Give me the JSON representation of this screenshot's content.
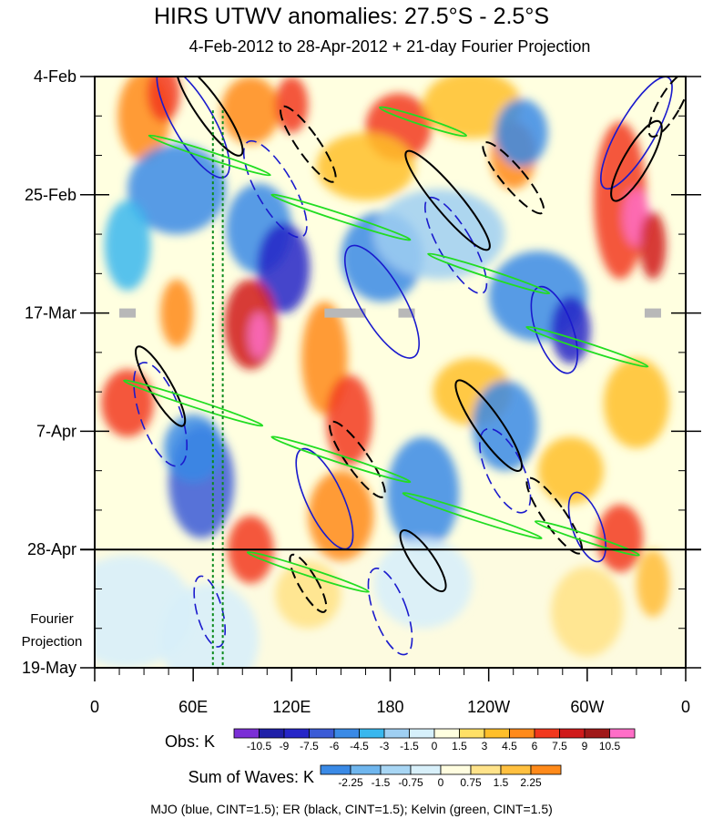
{
  "chart_data": {
    "type": "heatmap",
    "title": "HIRS UTWV anomalies: 27.5°S - 2.5°S",
    "subtitle": "4-Feb-2012 to 28-Apr-2012 + 21-day Fourier Projection",
    "x_tick_labels": [
      "0",
      "60E",
      "120E",
      "180",
      "120W",
      "60W",
      "0"
    ],
    "x_tick_lon": [
      0,
      60,
      120,
      180,
      240,
      300,
      360
    ],
    "xlim": [
      0,
      360
    ],
    "y_tick_labels": [
      "4-Feb",
      "25-Feb",
      "17-Mar",
      "7-Apr",
      "28-Apr",
      "19-May"
    ],
    "y_tick_day": [
      0,
      21,
      42,
      63,
      84,
      105
    ],
    "ylim_days": [
      0,
      105
    ],
    "obs_end_day": 84,
    "projection_label_lines": [
      "Fourier",
      "Projection"
    ],
    "obs_colorbar": {
      "label": "Obs: K",
      "levels": [
        "-10.5",
        "-9",
        "-7.5",
        "-6",
        "-4.5",
        "-3",
        "-1.5",
        "0",
        "1.5",
        "3",
        "4.5",
        "6",
        "7.5",
        "9",
        "10.5"
      ],
      "colors": [
        "#7b2fd6",
        "#1f1fa8",
        "#2626c8",
        "#3b5bd6",
        "#3a8ae6",
        "#38b7ee",
        "#9fcff2",
        "#d6f0fb",
        "#ffffe0",
        "#ffe066",
        "#ffbf2a",
        "#ff8a1a",
        "#f2381d",
        "#d01a1a",
        "#a01818",
        "#ff6ec7"
      ]
    },
    "waves_colorbar": {
      "label": "Sum of Waves: K",
      "levels": [
        "-2.25",
        "-1.5",
        "-0.75",
        "0",
        "0.75",
        "1.5",
        "2.25"
      ],
      "colors": [
        "#3a8ae6",
        "#6fb6ee",
        "#a8d6f4",
        "#d8f0fa",
        "#fffde0",
        "#ffe38a",
        "#ffc040",
        "#ff8a1a"
      ]
    },
    "missing_data_spans_lon_at_day_42": [
      [
        15,
        25
      ],
      [
        140,
        165
      ],
      [
        185,
        195
      ],
      [
        335,
        345
      ]
    ],
    "green_dotted_lines_lon": [
      72,
      78
    ],
    "contours": [
      {
        "name": "MJO",
        "color": "#1a1acd",
        "cint": 1.5
      },
      {
        "name": "ER",
        "color": "#000000",
        "cint": 1.5
      },
      {
        "name": "Kelvin",
        "color": "#22dd22",
        "cint": 1.5
      }
    ],
    "footer": "MJO (blue, CINT=1.5); ER (black, CINT=1.5); Kelvin (green, CINT=1.5)"
  }
}
